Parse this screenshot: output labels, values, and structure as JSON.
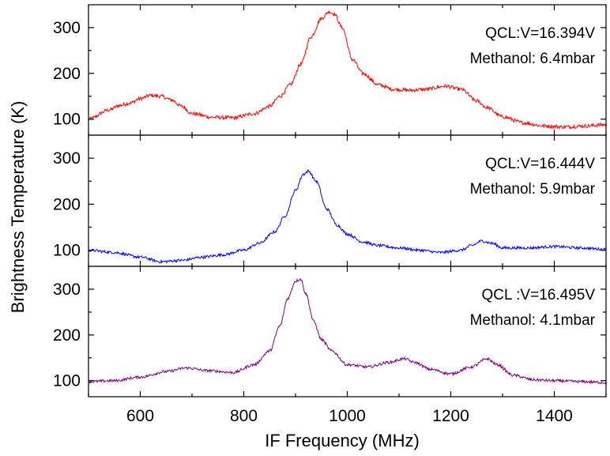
{
  "chart_data": {
    "type": "line",
    "xlabel": "IF Frequency (MHz)",
    "ylabel": "Brightness Temperature (K)",
    "xlim": [
      500,
      1500
    ],
    "x_ticks": [
      600,
      800,
      1000,
      1200,
      1400
    ],
    "grid": false,
    "panels": [
      {
        "ylim": [
          65,
          350
        ],
        "y_ticks": [
          100,
          200,
          300
        ],
        "annotations": [
          "QCL:V=16.394V",
          "Methanol: 6.4mbar"
        ],
        "series": [
          {
            "color": "#ff0000",
            "x": [
              500,
              540,
              560,
              580,
              600,
              620,
              640,
              660,
              680,
              700,
              740,
              780,
              820,
              850,
              870,
              890,
              910,
              930,
              950,
              965,
              975,
              990,
              1010,
              1030,
              1060,
              1090,
              1120,
              1150,
              1190,
              1220,
              1250,
              1270,
              1300,
              1340,
              1380,
              1420,
              1460,
              1500
            ],
            "y": [
              100,
              120,
              130,
              135,
              145,
              152,
              150,
              142,
              128,
              112,
              104,
              103,
              112,
              128,
              150,
              175,
              220,
              280,
              320,
              335,
              330,
              300,
              230,
              200,
              175,
              165,
              163,
              165,
              172,
              165,
              140,
              125,
              105,
              92,
              85,
              83,
              85,
              88
            ],
            "noise": 4
          }
        ]
      },
      {
        "ylim": [
          65,
          350
        ],
        "y_ticks": [
          100,
          200,
          300
        ],
        "annotations": [
          "QCL:V=16.444V",
          "Methanol: 5.9mbar"
        ],
        "series": [
          {
            "color": "#0000ff",
            "x": [
              500,
              550,
              600,
              640,
              680,
              720,
              760,
              800,
              830,
              860,
              880,
              900,
              915,
              925,
              940,
              960,
              980,
              1000,
              1030,
              1060,
              1100,
              1140,
              1180,
              1220,
              1240,
              1260,
              1280,
              1300,
              1350,
              1400,
              1450,
              1500
            ],
            "y": [
              100,
              95,
              85,
              75,
              78,
              85,
              90,
              100,
              115,
              140,
              175,
              230,
              265,
              272,
              250,
              190,
              155,
              135,
              118,
              110,
              105,
              100,
              95,
              100,
              110,
              120,
              115,
              105,
              105,
              108,
              105,
              102
            ],
            "noise": 3
          }
        ]
      },
      {
        "ylim": [
          65,
          350
        ],
        "y_ticks": [
          100,
          200,
          300
        ],
        "annotations": [
          "QCL :V=16.495V",
          "Methanol: 4.1mbar"
        ],
        "series": [
          {
            "color": "#800080",
            "x": [
              500,
              550,
              600,
              650,
              690,
              730,
              780,
              820,
              850,
              870,
              885,
              900,
              910,
              920,
              935,
              950,
              970,
              1000,
              1040,
              1080,
              1110,
              1130,
              1160,
              1200,
              1240,
              1270,
              1290,
              1320,
              1360,
              1400,
              1450,
              1500
            ],
            "y": [
              98,
              100,
              108,
              120,
              128,
              122,
              118,
              135,
              165,
              220,
              280,
              318,
              322,
              290,
              230,
              190,
              165,
              135,
              130,
              140,
              148,
              140,
              125,
              115,
              130,
              148,
              135,
              112,
              102,
              100,
              98,
              96
            ],
            "noise": 3
          }
        ]
      }
    ]
  }
}
